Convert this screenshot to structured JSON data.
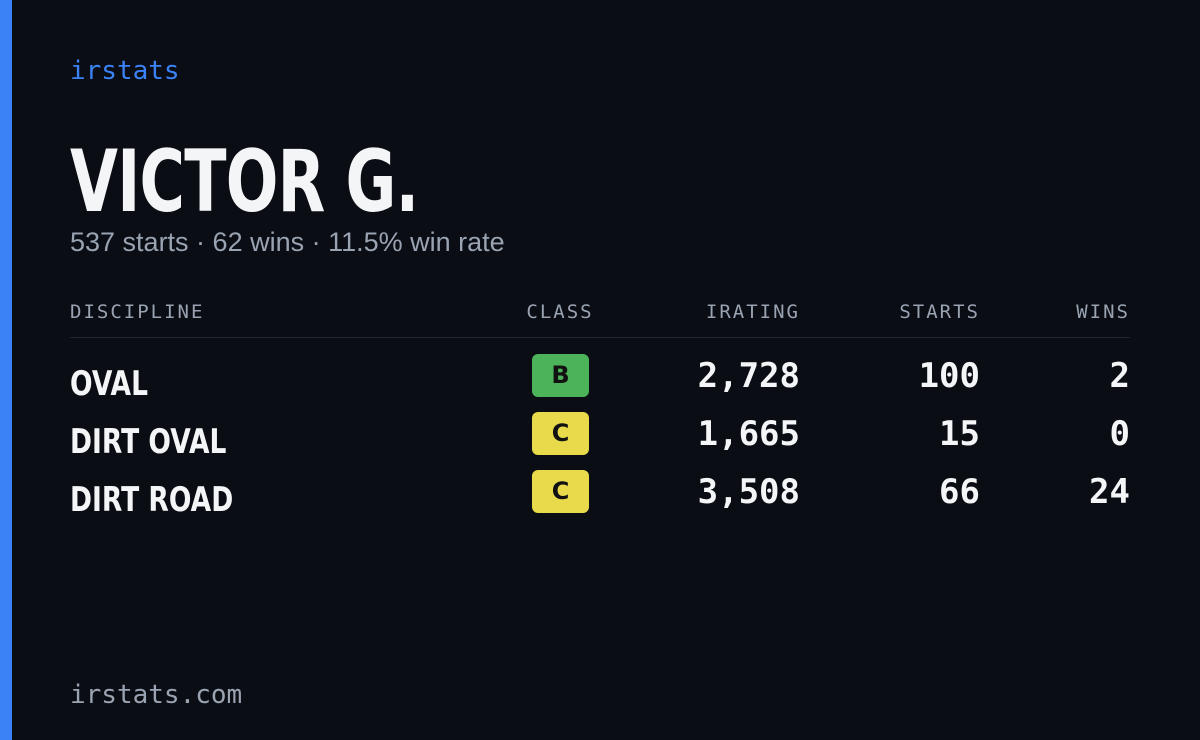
{
  "brand": "irstats",
  "driver": {
    "name": "VICTOR G.",
    "summary": "537 starts · 62 wins · 11.5% win rate"
  },
  "table": {
    "headers": [
      "DISCIPLINE",
      "CLASS",
      "IRATING",
      "STARTS",
      "WINS"
    ],
    "rows": [
      {
        "discipline": "OVAL",
        "class": "B",
        "class_color": "#4cb35a",
        "irating": "2,728",
        "starts": "100",
        "wins": "2"
      },
      {
        "discipline": "DIRT OVAL",
        "class": "C",
        "class_color": "#e8da4b",
        "irating": "1,665",
        "starts": "15",
        "wins": "0"
      },
      {
        "discipline": "DIRT ROAD",
        "class": "C",
        "class_color": "#e8da4b",
        "irating": "3,508",
        "starts": "66",
        "wins": "24"
      }
    ]
  },
  "footer": "irstats.com"
}
